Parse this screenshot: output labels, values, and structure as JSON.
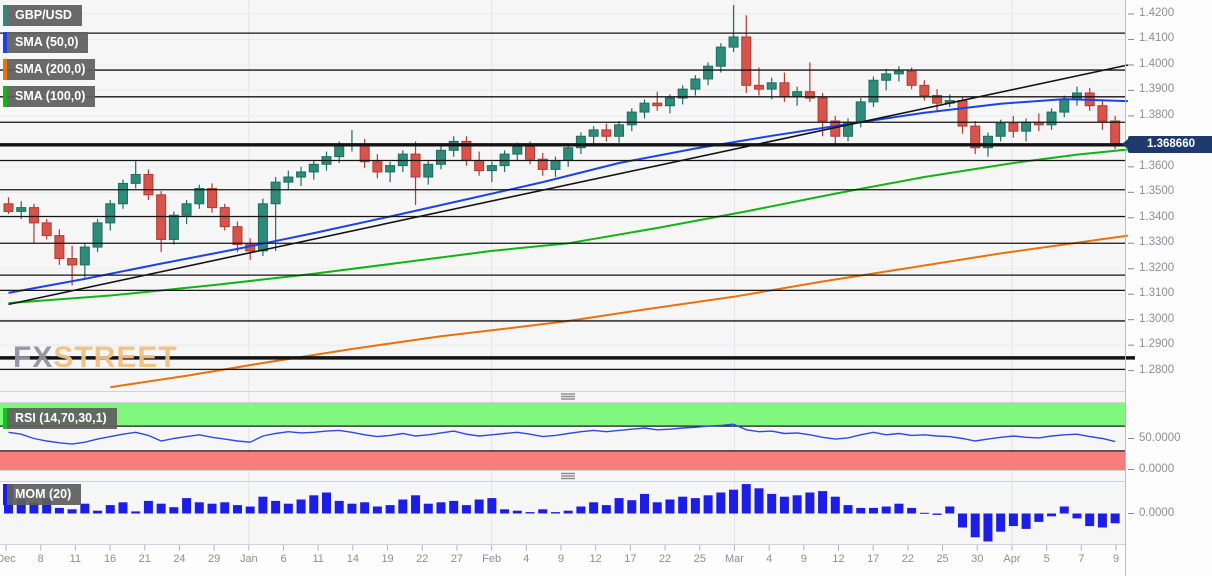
{
  "legend": {
    "items": [
      {
        "label": "GBP/USD",
        "color": "#2a8c7f"
      },
      {
        "label": "SMA (50,0)",
        "color": "#1f41e8"
      },
      {
        "label": "SMA (200,0)",
        "color": "#e8720c"
      },
      {
        "label": "SMA (100,0)",
        "color": "#12b412"
      }
    ]
  },
  "watermark": {
    "fx": "FX",
    "street": "STREET"
  },
  "price_axis": {
    "last_price": "1.368660",
    "tick_labels": [
      "1.4200",
      "1.4100",
      "1.4000",
      "1.3900",
      "1.3800",
      "1.3600",
      "1.3500",
      "1.3400",
      "1.3300",
      "1.3200",
      "1.3100",
      "1.3000",
      "1.2900",
      "1.2800"
    ]
  },
  "chart_data": {
    "type": "candlestick",
    "symbol": "GBP/USD",
    "ylim": [
      1.272,
      1.4255
    ],
    "last_price": 1.36866,
    "price_ticks": [
      1.42,
      1.41,
      1.4,
      1.39,
      1.38,
      1.36,
      1.35,
      1.34,
      1.33,
      1.32,
      1.31,
      1.3,
      1.29,
      1.28
    ],
    "x_tick_labels": [
      "Dec",
      "8",
      "11",
      "16",
      "21",
      "24",
      "29",
      "Jan",
      "6",
      "11",
      "14",
      "19",
      "22",
      "27",
      "Feb",
      "4",
      "9",
      "12",
      "17",
      "22",
      "25",
      "Mar",
      "4",
      "9",
      "12",
      "17",
      "22",
      "25",
      "30",
      "Apr",
      "5",
      "7",
      "9"
    ],
    "month_gridline_label_indexes": [
      7,
      14,
      21,
      29
    ],
    "colors": {
      "up": "#2e8b7a",
      "up_border": "#1f6d5e",
      "down": "#d6544a",
      "down_border": "#b13a31",
      "grid": "#ebebee",
      "srline": "#141414",
      "axis_text": "#8e8e92"
    },
    "candles": [
      [
        1.3455,
        1.348,
        1.3415,
        1.3425
      ],
      [
        1.3425,
        1.3465,
        1.3395,
        1.344
      ],
      [
        1.344,
        1.3455,
        1.33,
        1.338
      ],
      [
        1.338,
        1.3395,
        1.3315,
        1.333
      ],
      [
        1.333,
        1.3355,
        1.3215,
        1.324
      ],
      [
        1.324,
        1.329,
        1.3135,
        1.3215
      ],
      [
        1.3215,
        1.33,
        1.3165,
        1.3285
      ],
      [
        1.3285,
        1.3395,
        1.3265,
        1.338
      ],
      [
        1.338,
        1.347,
        1.335,
        1.3455
      ],
      [
        1.3455,
        1.355,
        1.3435,
        1.3535
      ],
      [
        1.3535,
        1.3625,
        1.3515,
        1.357
      ],
      [
        1.357,
        1.359,
        1.347,
        1.349
      ],
      [
        1.349,
        1.3505,
        1.3265,
        1.3315
      ],
      [
        1.3315,
        1.3425,
        1.3295,
        1.341
      ],
      [
        1.341,
        1.347,
        1.3375,
        1.3455
      ],
      [
        1.3455,
        1.353,
        1.3435,
        1.3515
      ],
      [
        1.3515,
        1.3535,
        1.342,
        1.344
      ],
      [
        1.344,
        1.3455,
        1.335,
        1.3365
      ],
      [
        1.3365,
        1.3385,
        1.3265,
        1.3295
      ],
      [
        1.3295,
        1.332,
        1.3235,
        1.327
      ],
      [
        1.327,
        1.3475,
        1.325,
        1.3455
      ],
      [
        1.3455,
        1.356,
        1.327,
        1.354
      ],
      [
        1.354,
        1.3585,
        1.351,
        1.356
      ],
      [
        1.356,
        1.36,
        1.3525,
        1.358
      ],
      [
        1.358,
        1.3625,
        1.355,
        1.361
      ],
      [
        1.361,
        1.366,
        1.3585,
        1.364
      ],
      [
        1.364,
        1.37,
        1.3615,
        1.3685
      ],
      [
        1.3685,
        1.3745,
        1.366,
        1.369
      ],
      [
        1.369,
        1.371,
        1.3595,
        1.362
      ],
      [
        1.362,
        1.365,
        1.3555,
        1.358
      ],
      [
        1.358,
        1.362,
        1.354,
        1.3605
      ],
      [
        1.3605,
        1.3665,
        1.358,
        1.365
      ],
      [
        1.365,
        1.37,
        1.345,
        1.356
      ],
      [
        1.356,
        1.3625,
        1.353,
        1.361
      ],
      [
        1.361,
        1.3685,
        1.359,
        1.3665
      ],
      [
        1.3665,
        1.372,
        1.364,
        1.37
      ],
      [
        1.37,
        1.372,
        1.3605,
        1.3625
      ],
      [
        1.3625,
        1.366,
        1.3565,
        1.3585
      ],
      [
        1.3585,
        1.362,
        1.354,
        1.3605
      ],
      [
        1.3605,
        1.3665,
        1.358,
        1.365
      ],
      [
        1.365,
        1.3695,
        1.3625,
        1.368
      ],
      [
        1.368,
        1.37,
        1.361,
        1.363
      ],
      [
        1.363,
        1.3655,
        1.3565,
        1.359
      ],
      [
        1.359,
        1.364,
        1.356,
        1.3625
      ],
      [
        1.3625,
        1.369,
        1.36,
        1.3675
      ],
      [
        1.3675,
        1.3735,
        1.365,
        1.372
      ],
      [
        1.372,
        1.376,
        1.369,
        1.3745
      ],
      [
        1.3745,
        1.377,
        1.37,
        1.372
      ],
      [
        1.372,
        1.378,
        1.3695,
        1.3765
      ],
      [
        1.3765,
        1.383,
        1.374,
        1.3815
      ],
      [
        1.3815,
        1.3865,
        1.379,
        1.385
      ],
      [
        1.385,
        1.3895,
        1.382,
        1.384
      ],
      [
        1.384,
        1.3885,
        1.381,
        1.387
      ],
      [
        1.387,
        1.392,
        1.3845,
        1.3905
      ],
      [
        1.3905,
        1.396,
        1.388,
        1.3945
      ],
      [
        1.3945,
        1.401,
        1.392,
        1.3995
      ],
      [
        1.3995,
        1.4085,
        1.397,
        1.407
      ],
      [
        1.407,
        1.4235,
        1.405,
        1.411
      ],
      [
        1.411,
        1.4195,
        1.389,
        1.392
      ],
      [
        1.392,
        1.399,
        1.388,
        1.3905
      ],
      [
        1.3905,
        1.395,
        1.3865,
        1.393
      ],
      [
        1.393,
        1.397,
        1.3855,
        1.3875
      ],
      [
        1.3875,
        1.3915,
        1.384,
        1.3895
      ],
      [
        1.3895,
        1.401,
        1.3855,
        1.387
      ],
      [
        1.387,
        1.389,
        1.372,
        1.378
      ],
      [
        1.378,
        1.38,
        1.3685,
        1.372
      ],
      [
        1.372,
        1.379,
        1.37,
        1.3775
      ],
      [
        1.3775,
        1.387,
        1.3755,
        1.3855
      ],
      [
        1.3855,
        1.3955,
        1.3835,
        1.394
      ],
      [
        1.394,
        1.3985,
        1.39,
        1.3965
      ],
      [
        1.3965,
        1.3995,
        1.3935,
        1.3975
      ],
      [
        1.3975,
        1.399,
        1.3905,
        1.392
      ],
      [
        1.392,
        1.394,
        1.386,
        1.388
      ],
      [
        1.388,
        1.3905,
        1.3815,
        1.385
      ],
      [
        1.385,
        1.3885,
        1.3835,
        1.386
      ],
      [
        1.386,
        1.3875,
        1.373,
        1.376
      ],
      [
        1.376,
        1.378,
        1.365,
        1.3675
      ],
      [
        1.3675,
        1.3735,
        1.364,
        1.372
      ],
      [
        1.372,
        1.3785,
        1.37,
        1.377
      ],
      [
        1.377,
        1.38,
        1.3715,
        1.374
      ],
      [
        1.374,
        1.379,
        1.37,
        1.3775
      ],
      [
        1.3775,
        1.381,
        1.374,
        1.3765
      ],
      [
        1.3765,
        1.383,
        1.3745,
        1.3815
      ],
      [
        1.3815,
        1.388,
        1.3795,
        1.3865
      ],
      [
        1.3865,
        1.3915,
        1.384,
        1.389
      ],
      [
        1.389,
        1.391,
        1.382,
        1.384
      ],
      [
        1.384,
        1.3865,
        1.3745,
        1.378
      ],
      [
        1.378,
        1.38,
        1.367,
        1.36866
      ]
    ],
    "overlays": {
      "sma50": {
        "name": "SMA (50,0)",
        "color": "#1f41e8",
        "points": [
          [
            0,
            1.3105
          ],
          [
            6,
            1.316
          ],
          [
            12,
            1.322
          ],
          [
            18,
            1.3278
          ],
          [
            24,
            1.334
          ],
          [
            30,
            1.3405
          ],
          [
            36,
            1.3472
          ],
          [
            42,
            1.354
          ],
          [
            48,
            1.3615
          ],
          [
            54,
            1.3672
          ],
          [
            60,
            1.3722
          ],
          [
            66,
            1.3768
          ],
          [
            72,
            1.3812
          ],
          [
            78,
            1.3848
          ],
          [
            83,
            1.3866
          ],
          [
            88,
            1.3858
          ]
        ]
      },
      "sma100": {
        "name": "SMA (100,0)",
        "color": "#12b412",
        "points": [
          [
            0,
            1.3065
          ],
          [
            8,
            1.3095
          ],
          [
            16,
            1.3135
          ],
          [
            24,
            1.318
          ],
          [
            31,
            1.3225
          ],
          [
            38,
            1.327
          ],
          [
            44,
            1.33
          ],
          [
            51,
            1.336
          ],
          [
            58,
            1.3425
          ],
          [
            65,
            1.3495
          ],
          [
            72,
            1.356
          ],
          [
            79,
            1.3615
          ],
          [
            84,
            1.3648
          ],
          [
            88,
            1.3668
          ]
        ]
      },
      "sma200": {
        "name": "SMA (200,0)",
        "color": "#e8720c",
        "points": [
          [
            8,
            1.2735
          ],
          [
            14,
            1.278
          ],
          [
            20,
            1.283
          ],
          [
            27,
            1.2885
          ],
          [
            34,
            1.2935
          ],
          [
            40,
            1.297
          ],
          [
            44,
            1.2995
          ],
          [
            50,
            1.304
          ],
          [
            57,
            1.309
          ],
          [
            64,
            1.315
          ],
          [
            71,
            1.3205
          ],
          [
            78,
            1.326
          ],
          [
            83,
            1.3295
          ],
          [
            88,
            1.333
          ]
        ]
      },
      "trendline": {
        "name": "ascending-trendline",
        "color": "#141414",
        "points": [
          [
            0,
            1.306
          ],
          [
            88,
            1.4
          ]
        ]
      },
      "support_resistance": [
        {
          "price": 1.4125,
          "thick": false
        },
        {
          "price": 1.398,
          "thick": false
        },
        {
          "price": 1.3875,
          "thick": false
        },
        {
          "price": 1.3775,
          "thick": false
        },
        {
          "price": 1.36866,
          "thick": true
        },
        {
          "price": 1.3625,
          "thick": false
        },
        {
          "price": 1.351,
          "thick": false
        },
        {
          "price": 1.3405,
          "thick": false
        },
        {
          "price": 1.33,
          "thick": false
        },
        {
          "price": 1.3175,
          "thick": false
        },
        {
          "price": 1.3115,
          "thick": false
        },
        {
          "price": 1.2995,
          "thick": false
        },
        {
          "price": 1.285,
          "thick": true
        },
        {
          "price": 1.2805,
          "thick": false
        }
      ]
    },
    "rsi_panel": {
      "type": "line",
      "label": "RSI (14,70,30,1)",
      "legend_color": "#12c412",
      "line_color": "#2a4be0",
      "overbought": 70,
      "oversold": 30,
      "overbought_band_color": "#80f87e",
      "oversold_band_color": "#f87e7e",
      "tick_labels": [
        "50.0000",
        "0.0000"
      ],
      "ticks": [
        50,
        0
      ],
      "values": [
        60,
        57,
        50,
        46,
        43,
        41,
        44,
        49,
        53,
        57,
        60,
        55,
        46,
        50,
        53,
        56,
        52,
        49,
        46,
        44,
        54,
        58,
        61,
        59,
        60,
        62,
        63,
        60,
        56,
        53,
        55,
        58,
        54,
        56,
        59,
        62,
        57,
        54,
        56,
        58,
        60,
        57,
        53,
        55,
        58,
        61,
        63,
        61,
        63,
        65,
        67,
        64,
        65,
        67,
        68,
        70,
        71,
        73,
        64,
        61,
        62,
        58,
        59,
        56,
        52,
        49,
        51,
        56,
        60,
        56,
        58,
        55,
        56,
        54,
        53,
        50,
        46,
        49,
        52,
        54,
        52,
        51,
        54,
        56,
        57,
        53,
        50,
        45
      ]
    },
    "mom_panel": {
      "type": "bar",
      "label": "MOM (20)",
      "legend_color": "#1d1de8",
      "bar_color": "#1d1de8",
      "tick_labels": [
        "0.0000"
      ],
      "ticks": [
        0
      ],
      "ylim": [
        -0.0445,
        0.0445
      ],
      "values": [
        0.042,
        0.02,
        0.016,
        0.022,
        0.008,
        0.006,
        0.014,
        0.004,
        0.012,
        0.016,
        0.003,
        0.018,
        0.014,
        0.009,
        0.022,
        0.016,
        0.014,
        0.016,
        0.012,
        0.01,
        0.024,
        0.018,
        0.014,
        0.02,
        0.026,
        0.03,
        0.018,
        0.014,
        0.016,
        0.01,
        0.012,
        0.02,
        0.026,
        0.014,
        0.016,
        0.018,
        0.012,
        0.02,
        0.022,
        0.006,
        0.004,
        0.002,
        0.006,
        0.002,
        0.004,
        0.01,
        0.016,
        0.012,
        0.022,
        0.019,
        0.028,
        0.016,
        0.02,
        0.024,
        0.022,
        0.026,
        0.03,
        0.034,
        0.042,
        0.036,
        0.028,
        0.024,
        0.026,
        0.03,
        0.032,
        0.024,
        0.012,
        0.008,
        0.008,
        0.01,
        0.014,
        0.008,
        0.001,
        -0.002,
        0.01,
        -0.02,
        -0.034,
        -0.04,
        -0.026,
        -0.018,
        -0.022,
        -0.012,
        -0.004,
        0.01,
        -0.007,
        -0.018,
        -0.02,
        -0.014
      ]
    }
  }
}
